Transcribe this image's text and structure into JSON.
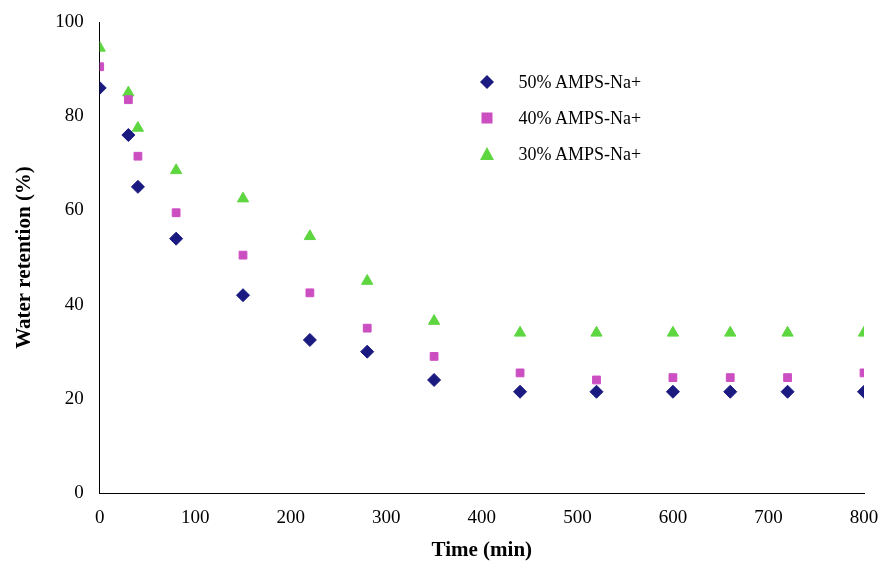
{
  "chart_data": {
    "type": "scatter",
    "x_label": "Time (min)",
    "y_label": "Water retention (%)",
    "xlim": [
      0,
      800
    ],
    "xticks": [
      0,
      100,
      200,
      300,
      400,
      500,
      600,
      700,
      800
    ],
    "ylim": [
      0,
      100
    ],
    "yticks": [
      0,
      20,
      40,
      60,
      80,
      100
    ],
    "grid": false,
    "legend": "upper right",
    "x": [
      0,
      30,
      40,
      80,
      150,
      220,
      280,
      350,
      440,
      520,
      600,
      660,
      720,
      800
    ],
    "series": [
      {
        "name": "50% AMPS-Na+",
        "color": "#1a1a80",
        "marker": "diamond",
        "values": [
          86,
          76,
          65,
          54,
          42,
          32.5,
          30,
          24,
          21.5,
          21.5,
          21.5,
          21.5,
          21.5,
          21.5
        ]
      },
      {
        "name": "40% AMPS-Na+",
        "color": "#cc4fc2",
        "marker": "square",
        "values": [
          90.5,
          83.5,
          71.5,
          59.5,
          50.5,
          42.5,
          35,
          29,
          25.5,
          24,
          24.5,
          24.5,
          24.5,
          25.5
        ]
      },
      {
        "name": "30% AMPS-Na+",
        "color": "#5ed640",
        "marker": "triangle",
        "values": [
          94.5,
          85,
          77.5,
          68.5,
          62.5,
          54.5,
          45,
          36.5,
          34,
          34,
          34,
          34,
          34,
          34
        ]
      }
    ]
  }
}
